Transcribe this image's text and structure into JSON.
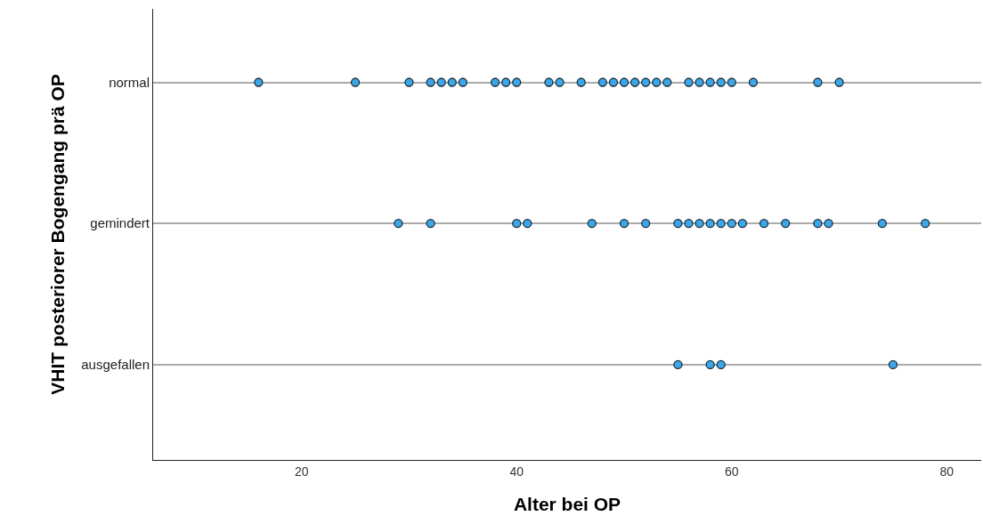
{
  "chart_data": {
    "type": "scatter",
    "orientation": "horizontal",
    "xlabel": "Alter bei OP",
    "ylabel": "VHIT posteriorer Bogengang prä OP",
    "categories": [
      "normal",
      "gemindert",
      "ausgefallen"
    ],
    "series": [
      {
        "color": "#3ba7e8",
        "values": [
          16,
          29,
          55
        ]
      },
      {
        "color": "#3ba7e8",
        "values": [
          25,
          32,
          58
        ]
      },
      {
        "color": "#3ba7e8",
        "values": [
          30,
          40,
          59
        ]
      },
      {
        "color": "#3ba7e8",
        "values": [
          32,
          41,
          75
        ]
      },
      {
        "color": "#3ba7e8",
        "values": [
          33,
          47,
          null
        ]
      },
      {
        "color": "#3ba7e8",
        "values": [
          34,
          50,
          null
        ]
      },
      {
        "color": "#3ba7e8",
        "values": [
          35,
          52,
          null
        ]
      },
      {
        "color": "#3ba7e8",
        "values": [
          38,
          55,
          null
        ]
      },
      {
        "color": "#3ba7e8",
        "values": [
          39,
          56,
          null
        ]
      },
      {
        "color": "#3ba7e8",
        "values": [
          40,
          57,
          null
        ]
      },
      {
        "color": "#3ba7e8",
        "values": [
          43,
          58,
          null
        ]
      },
      {
        "color": "#3ba7e8",
        "values": [
          44,
          59,
          null
        ]
      },
      {
        "color": "#3ba7e8",
        "values": [
          46,
          60,
          null
        ]
      },
      {
        "color": "#3ba7e8",
        "values": [
          48,
          61,
          null
        ]
      },
      {
        "color": "#3ba7e8",
        "values": [
          49,
          63,
          null
        ]
      },
      {
        "color": "#3ba7e8",
        "values": [
          50,
          65,
          null
        ]
      },
      {
        "color": "#3ba7e8",
        "values": [
          51,
          68,
          null
        ]
      },
      {
        "color": "#3ba7e8",
        "values": [
          52,
          69,
          null
        ]
      },
      {
        "color": "#3ba7e8",
        "values": [
          53,
          74,
          null
        ]
      },
      {
        "color": "#3ba7e8",
        "values": [
          54,
          78,
          null
        ]
      },
      {
        "color": "#3ba7e8",
        "values": [
          56,
          null,
          null
        ]
      },
      {
        "color": "#3ba7e8",
        "values": [
          57,
          null,
          null
        ]
      },
      {
        "color": "#3ba7e8",
        "values": [
          58,
          null,
          null
        ]
      },
      {
        "color": "#3ba7e8",
        "values": [
          59,
          null,
          null
        ]
      },
      {
        "color": "#3ba7e8",
        "values": [
          60,
          null,
          null
        ]
      },
      {
        "color": "#3ba7e8",
        "values": [
          62,
          null,
          null
        ]
      },
      {
        "color": "#3ba7e8",
        "values": [
          68,
          null,
          null
        ]
      },
      {
        "color": "#3ba7e8",
        "values": [
          70,
          null,
          null
        ]
      }
    ],
    "xlim": [
      6.2,
      83.2
    ],
    "xticks": [
      20,
      40,
      60,
      80
    ],
    "grid": "y",
    "marker": "circle"
  }
}
